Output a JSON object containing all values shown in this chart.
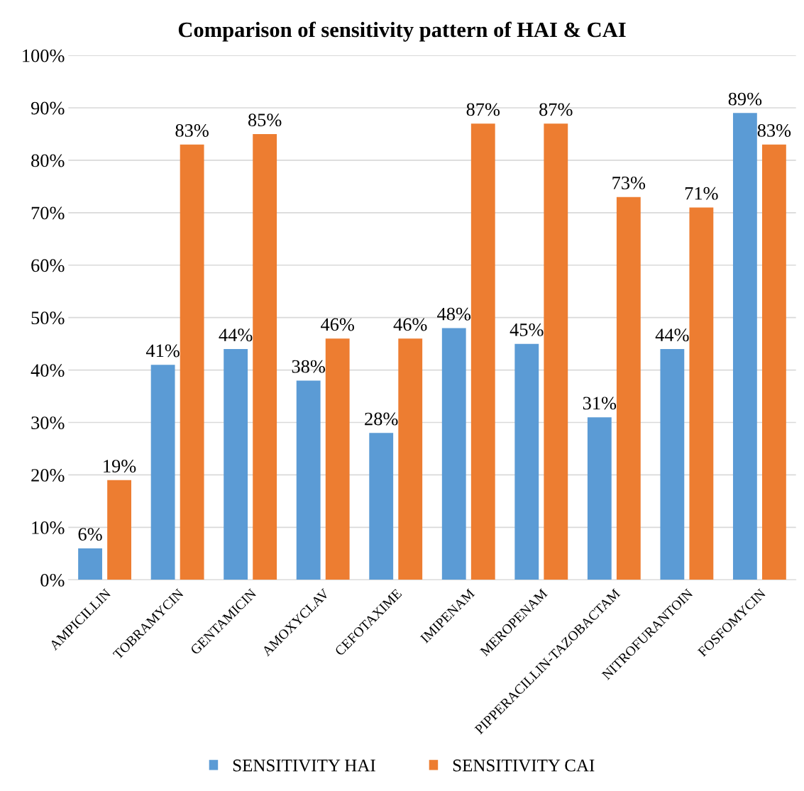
{
  "chart_data": {
    "type": "bar",
    "title": "Comparison of sensitivity pattern of HAI & CAI",
    "categories": [
      "AMPICILLIN",
      "TOBRAMYCIN",
      "GENTAMICIN",
      "AMOXYCLAV",
      "CEFOTAXIME",
      "IMIPENAM",
      "MEROPENAM",
      "PIPPERACILLIN-TAZOBACTAM",
      "NITROFURANTOIN",
      "FOSFOMYCIN"
    ],
    "series": [
      {
        "name": "SENSITIVITY HAI",
        "color": "#5b9bd5",
        "values": [
          6,
          41,
          44,
          38,
          28,
          48,
          45,
          31,
          44,
          89
        ],
        "value_labels": [
          "6%",
          "41%",
          "44%",
          "38%",
          "28%",
          "48%",
          "45%",
          "31%",
          "44%",
          "89%"
        ]
      },
      {
        "name": "SENSITIVITY CAI",
        "color": "#ed7d31",
        "values": [
          19,
          83,
          85,
          46,
          46,
          87,
          87,
          73,
          71,
          83
        ],
        "value_labels": [
          "19%",
          "83%",
          "85%",
          "46%",
          "46%",
          "87%",
          "87%",
          "73%",
          "71%",
          "83%"
        ]
      }
    ],
    "ylim": [
      0,
      100
    ],
    "yticks": [
      {
        "value": 0,
        "label": "0%"
      },
      {
        "value": 10,
        "label": "10%"
      },
      {
        "value": 20,
        "label": "20%"
      },
      {
        "value": 30,
        "label": "30%"
      },
      {
        "value": 40,
        "label": "40%"
      },
      {
        "value": 50,
        "label": "50%"
      },
      {
        "value": 60,
        "label": "60%"
      },
      {
        "value": 70,
        "label": "70%"
      },
      {
        "value": 80,
        "label": "80%"
      },
      {
        "value": 90,
        "label": "90%"
      },
      {
        "value": 100,
        "label": "100%"
      }
    ],
    "grid": "y",
    "legend": "bottom"
  }
}
